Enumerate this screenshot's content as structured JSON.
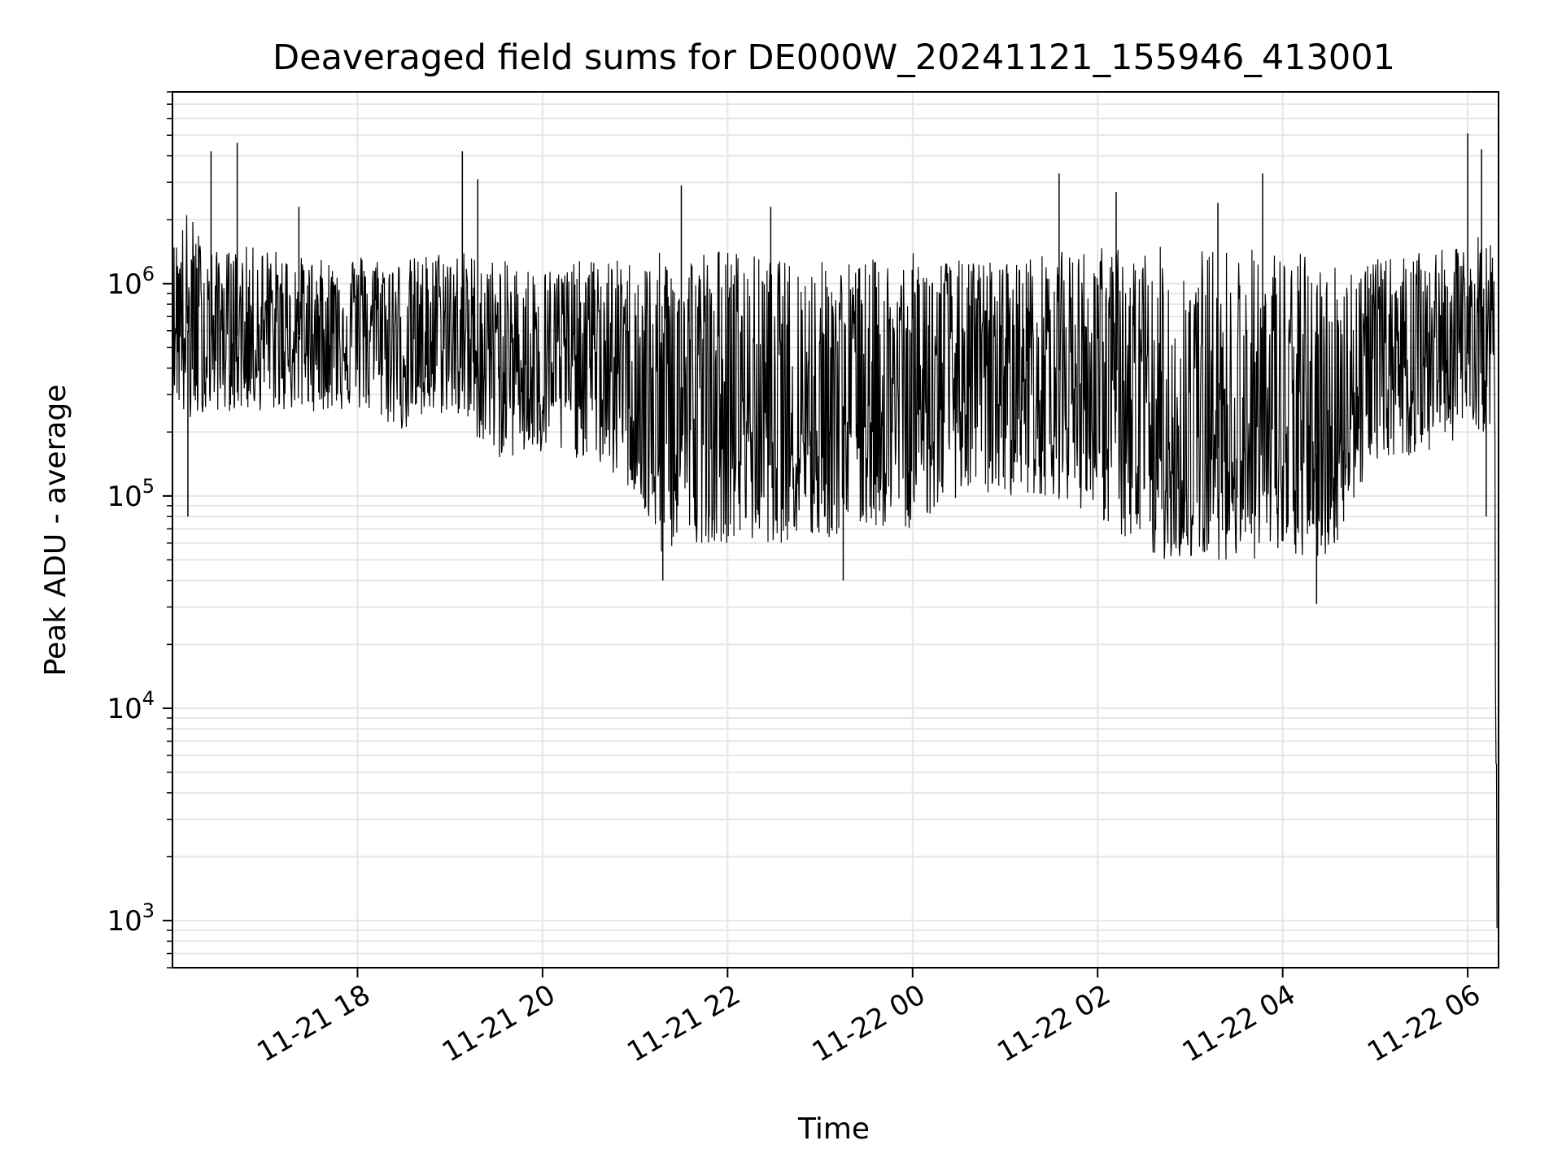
{
  "chart_data": {
    "type": "line",
    "title": "Deaveraged field sums for DE000W_20241121_155946_413001",
    "xlabel": "Time",
    "ylabel": "Peak ADU - average",
    "yscale": "log",
    "ylim": [
      600,
      8000000
    ],
    "xlim": [
      "2024-11-21 16:00",
      "2024-11-22 06:20"
    ],
    "grid": true,
    "line_color": "#000000",
    "grid_color": "#e6e6e6",
    "x_ticks": [
      {
        "label": "11-21 18",
        "value": "2024-11-21 18:00"
      },
      {
        "label": "11-21 20",
        "value": "2024-11-21 20:00"
      },
      {
        "label": "11-21 22",
        "value": "2024-11-21 22:00"
      },
      {
        "label": "11-22 00",
        "value": "2024-11-22 00:00"
      },
      {
        "label": "11-22 02",
        "value": "2024-11-22 02:00"
      },
      {
        "label": "11-22 04",
        "value": "2024-11-22 04:00"
      },
      {
        "label": "11-22 06",
        "value": "2024-11-22 06:00"
      }
    ],
    "y_ticks": [
      {
        "base": "10",
        "exp": "3",
        "value": 1000
      },
      {
        "base": "10",
        "exp": "4",
        "value": 10000
      },
      {
        "base": "10",
        "exp": "5",
        "value": 100000
      },
      {
        "base": "10",
        "exp": "6",
        "value": 1000000
      }
    ],
    "series": [
      {
        "x": [
          "2024-11-21 16:00",
          "2024-11-21 16:10",
          "2024-11-21 16:20",
          "2024-11-21 16:30",
          "2024-11-21 16:45",
          "2024-11-21 17:00",
          "2024-11-21 17:15",
          "2024-11-21 17:30",
          "2024-11-21 17:45",
          "2024-11-21 18:00",
          "2024-11-21 18:30",
          "2024-11-21 19:00",
          "2024-11-21 19:30",
          "2024-11-21 20:00",
          "2024-11-21 20:30",
          "2024-11-21 21:00",
          "2024-11-21 21:15",
          "2024-11-21 21:30",
          "2024-11-21 22:00",
          "2024-11-21 22:30",
          "2024-11-21 23:00",
          "2024-11-21 23:30",
          "2024-11-22 00:00",
          "2024-11-22 00:30",
          "2024-11-22 01:00",
          "2024-11-22 01:30",
          "2024-11-22 02:00",
          "2024-11-22 02:30",
          "2024-11-22 03:00",
          "2024-11-22 03:30",
          "2024-11-22 04:00",
          "2024-11-22 04:30",
          "2024-11-22 05:00",
          "2024-11-22 05:30",
          "2024-11-22 06:00",
          "2024-11-22 06:10",
          "2024-11-22 06:17",
          "2024-11-22 06:19"
        ],
        "y": [
          900000,
          600000,
          500000,
          650000,
          550000,
          600000,
          550000,
          600000,
          650000,
          700000,
          500000,
          550000,
          450000,
          420000,
          500000,
          350000,
          200000,
          250000,
          250000,
          250000,
          250000,
          280000,
          280000,
          350000,
          380000,
          400000,
          350000,
          150000,
          130000,
          200000,
          150000,
          160000,
          500000,
          500000,
          550000,
          600000,
          500000,
          1000
        ],
        "upper": [
          1500000,
          2300000,
          1600000,
          1400000,
          1500000,
          1500000,
          1400000,
          1300000,
          1300000,
          1400000,
          1300000,
          1500000,
          1300000,
          1200000,
          1300000,
          1300000,
          1400000,
          1500000,
          1500000,
          1300000,
          1300000,
          1300000,
          1400000,
          1300000,
          1300000,
          1400000,
          1500000,
          1500000,
          1500000,
          1500000,
          1500000,
          1300000,
          1300000,
          1400000,
          1500000,
          1800000,
          1500000,
          9000
        ],
        "lower": [
          300000,
          200000,
          250000,
          250000,
          250000,
          250000,
          250000,
          250000,
          250000,
          250000,
          200000,
          250000,
          150000,
          150000,
          150000,
          100000,
          50000,
          60000,
          60000,
          60000,
          60000,
          70000,
          70000,
          100000,
          100000,
          100000,
          80000,
          50000,
          50000,
          50000,
          50000,
          50000,
          150000,
          150000,
          200000,
          200000,
          200000,
          900
        ],
        "spikes": [
          {
            "x": "2024-11-21 16:10",
            "y": 80000
          },
          {
            "x": "2024-11-21 16:25",
            "y": 4200000
          },
          {
            "x": "2024-11-21 16:42",
            "y": 4600000
          },
          {
            "x": "2024-11-21 17:22",
            "y": 2300000
          },
          {
            "x": "2024-11-21 19:08",
            "y": 4200000
          },
          {
            "x": "2024-11-21 19:18",
            "y": 3100000
          },
          {
            "x": "2024-11-21 21:30",
            "y": 2900000
          },
          {
            "x": "2024-11-21 21:18",
            "y": 40000
          },
          {
            "x": "2024-11-21 22:28",
            "y": 2300000
          },
          {
            "x": "2024-11-21 23:15",
            "y": 40000
          },
          {
            "x": "2024-11-22 01:35",
            "y": 3300000
          },
          {
            "x": "2024-11-22 02:12",
            "y": 2700000
          },
          {
            "x": "2024-11-22 03:18",
            "y": 2400000
          },
          {
            "x": "2024-11-22 03:47",
            "y": 3300000
          },
          {
            "x": "2024-11-22 04:22",
            "y": 31000
          },
          {
            "x": "2024-11-22 06:00",
            "y": 5100000
          },
          {
            "x": "2024-11-22 06:09",
            "y": 4300000
          },
          {
            "x": "2024-11-22 06:12",
            "y": 80000
          }
        ]
      }
    ]
  }
}
